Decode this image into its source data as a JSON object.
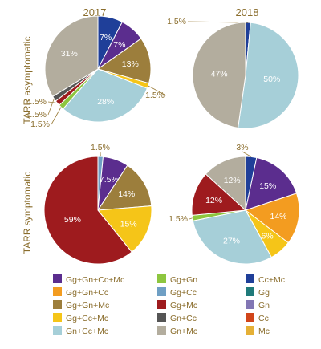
{
  "chart_data": {
    "type": "pie",
    "columns": [
      "2017",
      "2018"
    ],
    "rows": [
      "TARR asymptomatic",
      "TARR symptomatic"
    ],
    "legend": [
      {
        "key": "GgGnCcMc",
        "label": "Gg+Gn+Cc+Mc",
        "color": "#5b2d8e"
      },
      {
        "key": "GgGn",
        "label": "Gg+Gn",
        "color": "#8dc63f"
      },
      {
        "key": "CcMc",
        "label": "Cc+Mc",
        "color": "#1f3f99"
      },
      {
        "key": "GgGnCc",
        "label": "Gg+Gn+Cc",
        "color": "#f39c20"
      },
      {
        "key": "GgCc",
        "label": "Gg+Cc",
        "color": "#6f9fc4"
      },
      {
        "key": "Gg",
        "label": "Gg",
        "color": "#1f7a7a"
      },
      {
        "key": "GgGnMc",
        "label": "Gg+Gn+Mc",
        "color": "#9c7e3c"
      },
      {
        "key": "GgMc",
        "label": "Gg+Mc",
        "color": "#9e1b1e"
      },
      {
        "key": "Gn",
        "label": "Gn",
        "color": "#8276b4"
      },
      {
        "key": "GgCcMc",
        "label": "Gg+Cc+Mc",
        "color": "#f5c518"
      },
      {
        "key": "GnCc",
        "label": "Gn+Cc",
        "color": "#555555"
      },
      {
        "key": "Cc",
        "label": "Cc",
        "color": "#d1451a"
      },
      {
        "key": "GnCcMc",
        "label": "Gn+Cc+Mc",
        "color": "#a6cfd8"
      },
      {
        "key": "GnMc",
        "label": "Gn+Mc",
        "color": "#b3ad9e"
      },
      {
        "key": "Mc",
        "label": "Mc",
        "color": "#e5b036"
      }
    ],
    "pies": [
      {
        "year": "2017",
        "group": "TARR asymptomatic",
        "slices": [
          {
            "key": "CcMc",
            "value": 7,
            "label": "7%"
          },
          {
            "key": "GgGnCcMc",
            "value": 7,
            "label": "7%"
          },
          {
            "key": "GgGnMc",
            "value": 13,
            "label": "13%"
          },
          {
            "key": "GgCcMc",
            "value": 1.5,
            "label": "1.5%"
          },
          {
            "key": "GnCcMc",
            "value": 28,
            "label": "28%"
          },
          {
            "key": "GgGn",
            "value": 1.5,
            "label": "1.5%"
          },
          {
            "key": "GgMc",
            "value": 1.5,
            "label": "1.5%"
          },
          {
            "key": "GnCc",
            "value": 1.5,
            "label": "1.5%"
          },
          {
            "key": "GnMc",
            "value": 31,
            "label": "31%"
          }
        ]
      },
      {
        "year": "2018",
        "group": "TARR asymptomatic",
        "slices": [
          {
            "key": "CcMc",
            "value": 1.5,
            "label": "1.5%"
          },
          {
            "key": "GnCcMc",
            "value": 50,
            "label": "50%"
          },
          {
            "key": "GnMc",
            "value": 47,
            "label": "47%"
          }
        ]
      },
      {
        "year": "2017",
        "group": "TARR symptomatic",
        "slices": [
          {
            "key": "GgCc",
            "value": 1.5,
            "label": "1.5%"
          },
          {
            "key": "GgGnCcMc",
            "value": 7.5,
            "label": "7.5%"
          },
          {
            "key": "GgGnMc",
            "value": 14,
            "label": "14%"
          },
          {
            "key": "GgCcMc",
            "value": 15,
            "label": "15%"
          },
          {
            "key": "GgMc",
            "value": 59,
            "label": "59%"
          }
        ]
      },
      {
        "year": "2018",
        "group": "TARR symptomatic",
        "slices": [
          {
            "key": "CcMc",
            "value": 3,
            "label": "3%"
          },
          {
            "key": "GgGnCcMc",
            "value": 15,
            "label": "15%"
          },
          {
            "key": "GgGnCc",
            "value": 14,
            "label": "14%"
          },
          {
            "key": "GgCcMc",
            "value": 6,
            "label": "6%"
          },
          {
            "key": "GnCcMc",
            "value": 27,
            "label": "27%"
          },
          {
            "key": "GgGn",
            "value": 1.5,
            "label": "1.5%"
          },
          {
            "key": "GgMc",
            "value": 12,
            "label": "12%"
          },
          {
            "key": "GnMc",
            "value": 12,
            "label": "12%"
          }
        ]
      }
    ]
  }
}
